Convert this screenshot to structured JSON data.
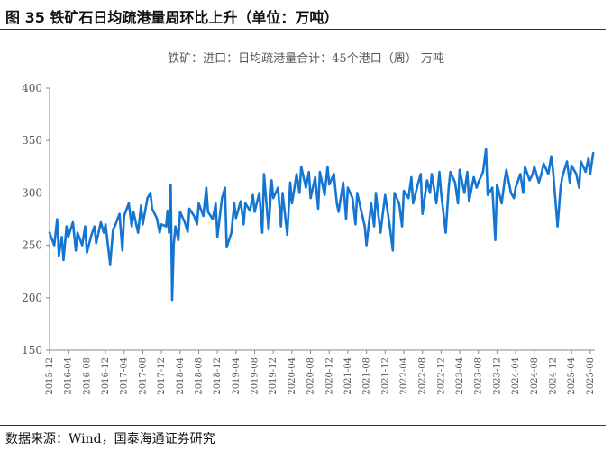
{
  "figure": {
    "title": "图 35  铁矿石日均疏港量周环比上升（单位：万吨）",
    "source": "数据来源：Wind，国泰海通证券研究"
  },
  "chart_data": {
    "type": "line",
    "title": "铁矿：进口：日均疏港量合计：45个港口（周） 万吨",
    "xlabel": "",
    "ylabel": "",
    "ylim": [
      150,
      400
    ],
    "yticks": [
      150,
      200,
      250,
      300,
      350,
      400
    ],
    "xlim": [
      "2015-12",
      "2025-09"
    ],
    "xticks": [
      "2015-12",
      "2016-04",
      "2016-08",
      "2016-12",
      "2017-04",
      "2017-08",
      "2017-12",
      "2018-04",
      "2018-08",
      "2018-12",
      "2019-04",
      "2019-08",
      "2019-12",
      "2020-04",
      "2020-08",
      "2020-12",
      "2021-04",
      "2021-08",
      "2021-12",
      "2022-04",
      "2022-08",
      "2022-12",
      "2023-04",
      "2023-08",
      "2023-12",
      "2024-04",
      "2024-08",
      "2024-12",
      "2025-04",
      "2025-08"
    ],
    "grid": false,
    "legend": "none",
    "series": [
      {
        "color": "#1576d2",
        "points": [
          [
            "2015-12",
            262
          ],
          [
            "2016-01",
            250
          ],
          [
            "2016-01-20",
            275
          ],
          [
            "2016-02",
            240
          ],
          [
            "2016-02-20",
            258
          ],
          [
            "2016-03",
            236
          ],
          [
            "2016-03-20",
            268
          ],
          [
            "2016-04",
            258
          ],
          [
            "2016-05",
            272
          ],
          [
            "2016-05-20",
            245
          ],
          [
            "2016-06",
            262
          ],
          [
            "2016-07",
            250
          ],
          [
            "2016-07-20",
            268
          ],
          [
            "2016-08",
            243
          ],
          [
            "2016-09",
            260
          ],
          [
            "2016-09-20",
            268
          ],
          [
            "2016-10",
            252
          ],
          [
            "2016-11",
            272
          ],
          [
            "2016-11-20",
            262
          ],
          [
            "2016-12",
            270
          ],
          [
            "2017-01",
            232
          ],
          [
            "2017-01-20",
            265
          ],
          [
            "2017-02",
            268
          ],
          [
            "2017-03",
            280
          ],
          [
            "2017-03-20",
            245
          ],
          [
            "2017-04",
            278
          ],
          [
            "2017-05",
            290
          ],
          [
            "2017-05-20",
            268
          ],
          [
            "2017-06",
            282
          ],
          [
            "2017-07",
            262
          ],
          [
            "2017-07-20",
            288
          ],
          [
            "2017-08",
            270
          ],
          [
            "2017-09",
            295
          ],
          [
            "2017-09-20",
            300
          ],
          [
            "2017-10",
            285
          ],
          [
            "2017-11",
            276
          ],
          [
            "2017-11-20",
            262
          ],
          [
            "2017-12",
            270
          ],
          [
            "2018-01",
            268
          ],
          [
            "2018-01-10",
            283
          ],
          [
            "2018-01-20",
            262
          ],
          [
            "2018-02",
            308
          ],
          [
            "2018-02-10",
            198
          ],
          [
            "2018-02-20",
            250
          ],
          [
            "2018-03",
            268
          ],
          [
            "2018-03-20",
            255
          ],
          [
            "2018-04",
            282
          ],
          [
            "2018-05",
            272
          ],
          [
            "2018-05-20",
            263
          ],
          [
            "2018-06",
            285
          ],
          [
            "2018-07",
            278
          ],
          [
            "2018-07-20",
            270
          ],
          [
            "2018-08",
            290
          ],
          [
            "2018-09",
            278
          ],
          [
            "2018-09-20",
            305
          ],
          [
            "2018-10",
            282
          ],
          [
            "2018-11",
            275
          ],
          [
            "2018-11-20",
            290
          ],
          [
            "2018-12",
            258
          ],
          [
            "2019-01",
            295
          ],
          [
            "2019-01-20",
            305
          ],
          [
            "2019-02",
            248
          ],
          [
            "2019-03",
            262
          ],
          [
            "2019-03-20",
            290
          ],
          [
            "2019-04",
            276
          ],
          [
            "2019-05",
            292
          ],
          [
            "2019-05-20",
            270
          ],
          [
            "2019-06",
            290
          ],
          [
            "2019-07",
            283
          ],
          [
            "2019-07-20",
            298
          ],
          [
            "2019-08",
            282
          ],
          [
            "2019-09",
            300
          ],
          [
            "2019-09-20",
            262
          ],
          [
            "2019-10",
            318
          ],
          [
            "2019-11",
            265
          ],
          [
            "2019-11-20",
            312
          ],
          [
            "2019-12",
            295
          ],
          [
            "2020-01",
            305
          ],
          [
            "2020-01-20",
            268
          ],
          [
            "2020-02",
            300
          ],
          [
            "2020-03",
            260
          ],
          [
            "2020-03-20",
            310
          ],
          [
            "2020-04",
            290
          ],
          [
            "2020-05",
            318
          ],
          [
            "2020-05-20",
            300
          ],
          [
            "2020-06",
            325
          ],
          [
            "2020-07",
            305
          ],
          [
            "2020-07-20",
            320
          ],
          [
            "2020-08",
            295
          ],
          [
            "2020-09",
            315
          ],
          [
            "2020-09-20",
            285
          ],
          [
            "2020-10",
            320
          ],
          [
            "2020-11",
            298
          ],
          [
            "2020-11-20",
            325
          ],
          [
            "2020-12",
            308
          ],
          [
            "2021-01",
            318
          ],
          [
            "2021-01-20",
            290
          ],
          [
            "2021-02",
            282
          ],
          [
            "2021-03",
            310
          ],
          [
            "2021-03-20",
            275
          ],
          [
            "2021-04",
            305
          ],
          [
            "2021-05",
            295
          ],
          [
            "2021-05-20",
            270
          ],
          [
            "2021-06",
            300
          ],
          [
            "2021-07",
            280
          ],
          [
            "2021-07-20",
            268
          ],
          [
            "2021-08",
            250
          ],
          [
            "2021-09",
            290
          ],
          [
            "2021-09-20",
            268
          ],
          [
            "2021-10",
            300
          ],
          [
            "2021-11",
            262
          ],
          [
            "2021-11-20",
            285
          ],
          [
            "2021-12",
            298
          ],
          [
            "2022-01",
            268
          ],
          [
            "2022-01-20",
            245
          ],
          [
            "2022-02",
            300
          ],
          [
            "2022-03",
            290
          ],
          [
            "2022-03-20",
            268
          ],
          [
            "2022-04",
            302
          ],
          [
            "2022-05",
            295
          ],
          [
            "2022-05-20",
            315
          ],
          [
            "2022-06",
            290
          ],
          [
            "2022-07",
            308
          ],
          [
            "2022-07-20",
            318
          ],
          [
            "2022-08",
            280
          ],
          [
            "2022-09",
            312
          ],
          [
            "2022-09-20",
            300
          ],
          [
            "2022-10",
            318
          ],
          [
            "2022-11",
            290
          ],
          [
            "2022-11-20",
            320
          ],
          [
            "2022-12",
            300
          ],
          [
            "2023-01",
            262
          ],
          [
            "2023-01-20",
            305
          ],
          [
            "2023-02",
            320
          ],
          [
            "2023-03",
            310
          ],
          [
            "2023-03-20",
            290
          ],
          [
            "2023-04",
            322
          ],
          [
            "2023-05",
            300
          ],
          [
            "2023-05-20",
            320
          ],
          [
            "2023-06",
            292
          ],
          [
            "2023-07",
            315
          ],
          [
            "2023-07-20",
            305
          ],
          [
            "2023-08",
            310
          ],
          [
            "2023-09",
            320
          ],
          [
            "2023-09-20",
            342
          ],
          [
            "2023-10",
            298
          ],
          [
            "2023-11",
            305
          ],
          [
            "2023-11-20",
            255
          ],
          [
            "2023-12",
            308
          ],
          [
            "2024-01",
            290
          ],
          [
            "2024-01-20",
            312
          ],
          [
            "2024-02",
            322
          ],
          [
            "2024-03",
            300
          ],
          [
            "2024-03-20",
            295
          ],
          [
            "2024-04",
            305
          ],
          [
            "2024-05",
            318
          ],
          [
            "2024-05-20",
            300
          ],
          [
            "2024-06",
            325
          ],
          [
            "2024-07",
            312
          ],
          [
            "2024-07-20",
            318
          ],
          [
            "2024-08",
            325
          ],
          [
            "2024-09",
            310
          ],
          [
            "2024-09-20",
            320
          ],
          [
            "2024-10",
            328
          ],
          [
            "2024-11",
            318
          ],
          [
            "2024-11-20",
            335
          ],
          [
            "2024-12",
            322
          ],
          [
            "2025-01",
            268
          ],
          [
            "2025-01-20",
            305
          ],
          [
            "2025-02",
            315
          ],
          [
            "2025-03",
            330
          ],
          [
            "2025-03-20",
            310
          ],
          [
            "2025-04",
            326
          ],
          [
            "2025-05",
            318
          ],
          [
            "2025-05-20",
            305
          ],
          [
            "2025-06",
            330
          ],
          [
            "2025-07",
            320
          ],
          [
            "2025-07-20",
            333
          ],
          [
            "2025-08",
            318
          ],
          [
            "2025-08-20",
            338
          ]
        ]
      }
    ]
  }
}
